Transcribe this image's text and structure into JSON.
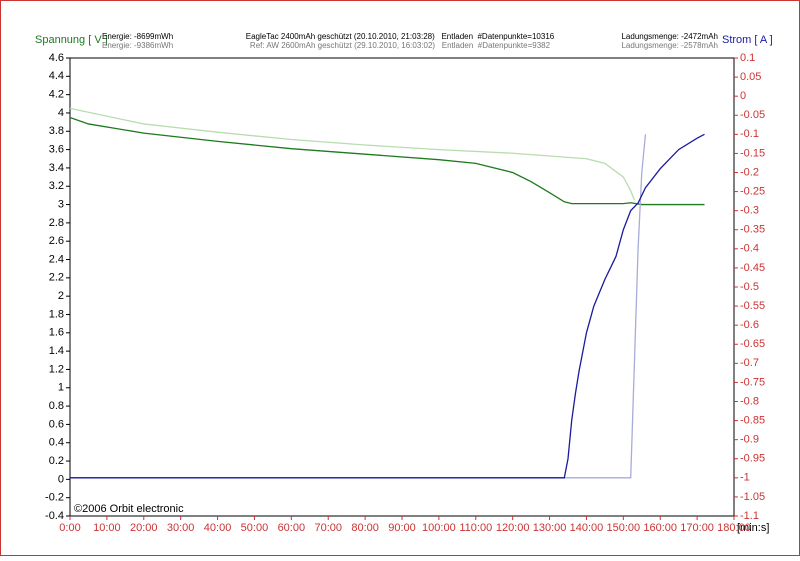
{
  "chart_data": {
    "type": "line",
    "texts": {
      "y_label": "Spannung [ V ]",
      "y2_label": "Strom [ A ]",
      "x_label": "[min:s]",
      "copyright": "©2006 Orbit electronic",
      "energy_main": "Energie: -8699mWh",
      "energy_ref": "Energie: -9386mWh",
      "title_main": "EagleTac 2400mAh geschützt (20.10.2010, 21:03:28)   Entladen  #Datenpunkte=10316",
      "title_ref": "Ref: AW 2600mAh geschützt (29.10.2010, 16:03:02)   Entladen  #Datenpunkte=9382",
      "charge_main": "Ladungsmenge: -2472mAh",
      "charge_ref": "Ladungsmenge: -2578mAh"
    },
    "xlim": [
      0,
      180
    ],
    "xticks": [
      {
        "value": 0,
        "label": "0:00"
      },
      {
        "value": 10,
        "label": "10:00"
      },
      {
        "value": 20,
        "label": "20:00"
      },
      {
        "value": 30,
        "label": "30:00"
      },
      {
        "value": 40,
        "label": "40:00"
      },
      {
        "value": 50,
        "label": "50:00"
      },
      {
        "value": 60,
        "label": "60:00"
      },
      {
        "value": 70,
        "label": "70:00"
      },
      {
        "value": 80,
        "label": "80:00"
      },
      {
        "value": 90,
        "label": "90:00"
      },
      {
        "value": 100,
        "label": "100:00"
      },
      {
        "value": 110,
        "label": "110:00"
      },
      {
        "value": 120,
        "label": "120:00"
      },
      {
        "value": 130,
        "label": "130:00"
      },
      {
        "value": 140,
        "label": "140:00"
      },
      {
        "value": 150,
        "label": "150:00"
      },
      {
        "value": 160,
        "label": "160:00"
      },
      {
        "value": 170,
        "label": "170:00"
      },
      {
        "value": 180,
        "label": "180:00"
      }
    ],
    "ylim": [
      -0.4,
      4.6
    ],
    "yticks": [
      4.6,
      4.4,
      4.2,
      4,
      3.8,
      3.6,
      3.4,
      3.2,
      3,
      2.8,
      2.6,
      2.4,
      2.2,
      2,
      1.8,
      1.6,
      1.4,
      1.2,
      1,
      0.8,
      0.6,
      0.4,
      0.2,
      0,
      -0.2,
      -0.4
    ],
    "y2lim": [
      -1.1,
      0.1
    ],
    "y2ticks": [
      0.1,
      0.05,
      0,
      -0.05,
      -0.1,
      -0.15,
      -0.2,
      -0.25,
      -0.3,
      -0.35,
      -0.4,
      -0.45,
      -0.5,
      -0.55,
      -0.6,
      -0.65,
      -0.7,
      -0.75,
      -0.8,
      -0.85,
      -0.9,
      -0.95,
      -1,
      -1.05,
      -1.1
    ],
    "series": [
      {
        "color": "#b8dcb0",
        "x": [
          0,
          20,
          40,
          60,
          80,
          100,
          120,
          140,
          145,
          150,
          152,
          153
        ],
        "values": [
          4.05,
          3.88,
          3.79,
          3.71,
          3.65,
          3.6,
          3.56,
          3.5,
          3.45,
          3.3,
          3.15,
          3.05
        ]
      },
      {
        "color": "#1e7a1e",
        "x": [
          0,
          5,
          20,
          40,
          60,
          80,
          100,
          110,
          120,
          125,
          130,
          134,
          136,
          140,
          150,
          152,
          155,
          172
        ],
        "values": [
          3.95,
          3.88,
          3.78,
          3.69,
          3.61,
          3.55,
          3.49,
          3.45,
          3.35,
          3.25,
          3.13,
          3.03,
          3.01,
          3.01,
          3.01,
          3.02,
          3,
          3
        ]
      },
      {
        "color": "#a8acd8",
        "axis": "y2",
        "x": [
          0,
          152,
          153,
          154,
          155,
          156
        ],
        "values": [
          -1,
          -1,
          -0.7,
          -0.4,
          -0.2,
          -0.1
        ]
      },
      {
        "color": "#1a1a9e",
        "axis": "y2",
        "x": [
          0,
          134,
          135,
          136,
          137,
          138,
          140,
          142,
          145,
          148,
          150,
          152,
          154,
          156,
          160,
          165,
          170,
          172
        ],
        "values": [
          -1,
          -1,
          -0.95,
          -0.85,
          -0.78,
          -0.72,
          -0.62,
          -0.55,
          -0.48,
          -0.42,
          -0.35,
          -0.3,
          -0.28,
          -0.24,
          -0.19,
          -0.14,
          -0.11,
          -0.1
        ]
      }
    ]
  }
}
